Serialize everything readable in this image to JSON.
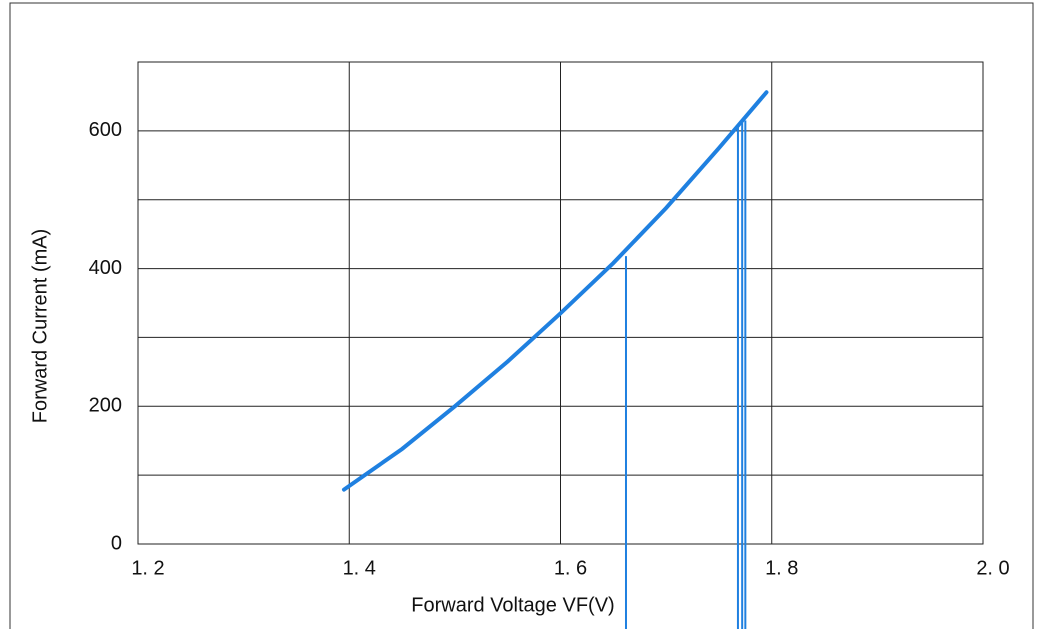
{
  "chart_data": {
    "type": "line",
    "xlabel": "Forward Voltage  VF(V)",
    "ylabel": "Forward Current (mA)",
    "xlim": [
      1.2,
      2.0
    ],
    "ylim": [
      0,
      700
    ],
    "xticks": [
      {
        "value": 1.2,
        "label": "1. 2"
      },
      {
        "value": 1.4,
        "label": "1. 4"
      },
      {
        "value": 1.6,
        "label": "1. 6"
      },
      {
        "value": 1.8,
        "label": "1. 8"
      },
      {
        "value": 2.0,
        "label": "2. 0"
      }
    ],
    "yticks": [
      0,
      200,
      400,
      600
    ],
    "ygrid": [
      100,
      300,
      500
    ],
    "grid": true,
    "x": [
      1.395,
      1.45,
      1.5,
      1.55,
      1.6,
      1.65,
      1.7,
      1.75,
      1.795
    ],
    "series": [
      {
        "color": "#1f80e0",
        "values": [
          79,
          138,
          200,
          265,
          335,
          408,
          488,
          575,
          656
        ]
      }
    ],
    "drop_lines": {
      "x": [
        1.662,
        1.768,
        1.772,
        1.775
      ],
      "top": [
        418,
        608,
        612,
        615
      ]
    }
  }
}
